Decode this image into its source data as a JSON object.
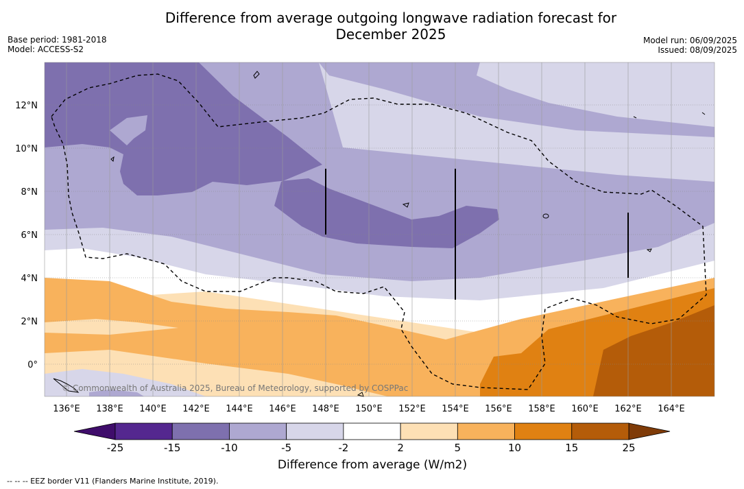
{
  "title_line1": "Difference from average outgoing longwave radiation forecast for",
  "title_line2": "December 2025",
  "base_period": "Base period: 1981-2018",
  "model": "Model: ACCESS-S2",
  "model_run": "Model run: 06/09/2025",
  "issued": "Issued: 08/09/2025",
  "copyright": "© Commonwealth of Australia 2025, Bureau of Meteorology, supported by COSPPac",
  "longitude_labels": [
    "136°E",
    "138°E",
    "140°E",
    "142°E",
    "144°E",
    "146°E",
    "148°E",
    "150°E",
    "152°E",
    "154°E",
    "156°E",
    "158°E",
    "160°E",
    "162°E",
    "164°E"
  ],
  "latitude_labels": [
    "12°N",
    "10°N",
    "8°N",
    "6°N",
    "4°N",
    "2°N",
    "0°"
  ],
  "colorbar": {
    "title": "Difference from average (W/m2)",
    "ticks": [
      "-25",
      "-15",
      "-10",
      "-5",
      "-2",
      "2",
      "5",
      "10",
      "15",
      "25"
    ],
    "colors": [
      "#54278f",
      "#7e70ae",
      "#aea8d1",
      "#d7d6e9",
      "#ffffff",
      "#fde0b5",
      "#f8b25c",
      "#e08112",
      "#b45c09"
    ],
    "under_color": "#3f0d6b",
    "over_color": "#7f3b08"
  },
  "legend_note": "-- -- -- EEZ border V11 (Flanders Marine Institute, 2019)."
}
